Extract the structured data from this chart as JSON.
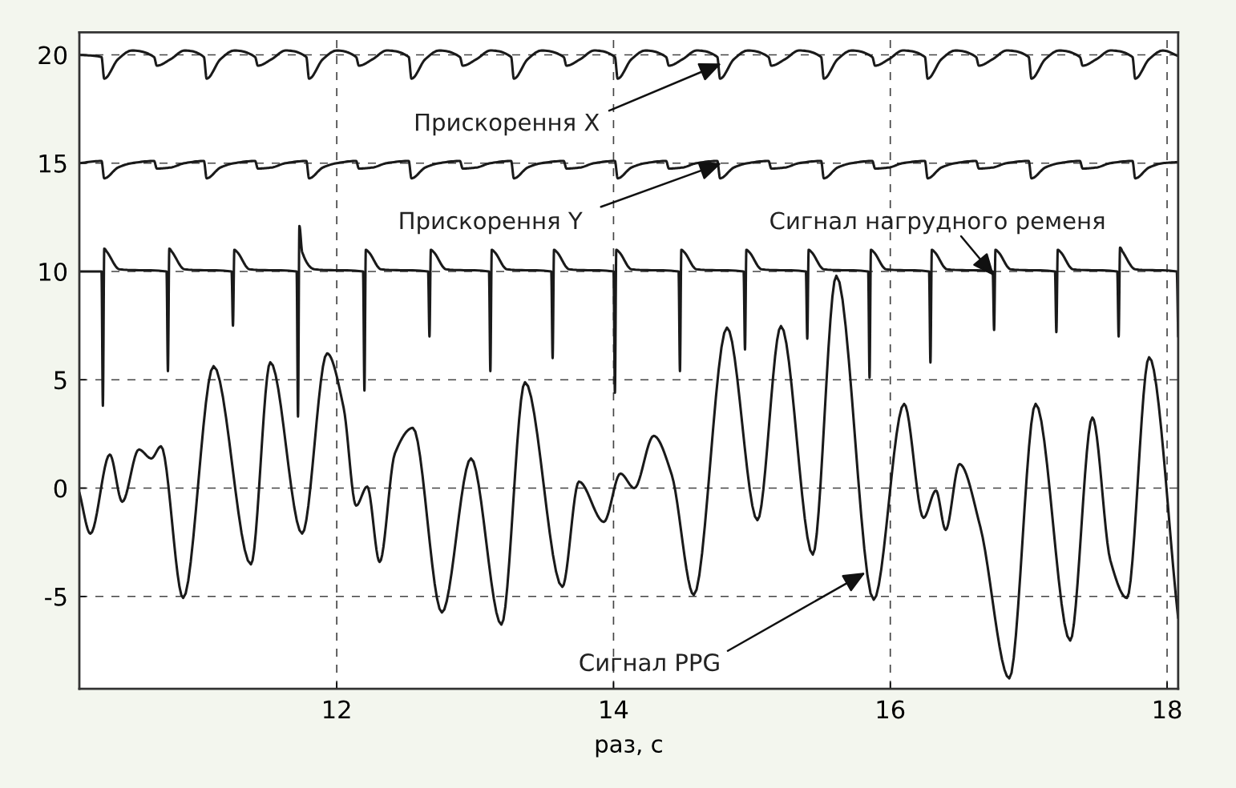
{
  "chart_data": {
    "type": "line",
    "xlabel": "раз, с",
    "xlim": [
      10.14,
      18.08
    ],
    "xticks": [
      12,
      14,
      16,
      18
    ],
    "ylim": [
      -9.26,
      21.04
    ],
    "yticks": [
      20,
      15,
      10,
      5,
      0,
      -5
    ],
    "grid": true,
    "line_style": "solid",
    "marker": "none",
    "series": [
      {
        "color": "#1a1a1a",
        "x": [
          10.14,
          10.3,
          10.32,
          10.42,
          10.52,
          10.68,
          10.7,
          10.8,
          10.9,
          11.04,
          11.06,
          11.16,
          11.26,
          11.41,
          11.43,
          11.53,
          11.63,
          11.78,
          11.8,
          11.9,
          12.0,
          12.14,
          12.16,
          12.26,
          12.36,
          12.52,
          12.54,
          12.64,
          12.74,
          12.89,
          12.91,
          13.01,
          13.11,
          13.26,
          13.28,
          13.38,
          13.48,
          13.64,
          13.66,
          13.76,
          13.86,
          14.01,
          14.03,
          14.13,
          14.23,
          14.38,
          14.4,
          14.5,
          14.6,
          14.75,
          14.77,
          14.87,
          14.97,
          15.12,
          15.14,
          15.24,
          15.34,
          15.5,
          15.52,
          15.62,
          15.72,
          15.87,
          15.89,
          15.99,
          16.09,
          16.25,
          16.27,
          16.37,
          16.47,
          16.62,
          16.64,
          16.74,
          16.84,
          17.0,
          17.02,
          17.12,
          17.22,
          17.37,
          17.39,
          17.49,
          17.59,
          17.75,
          17.77,
          17.87,
          17.97,
          18.08
        ],
        "values": [
          20.0,
          19.9,
          18.9,
          19.8,
          20.2,
          19.9,
          19.5,
          19.8,
          20.2,
          19.9,
          18.9,
          19.8,
          20.2,
          19.9,
          19.5,
          19.8,
          20.2,
          19.9,
          18.9,
          19.8,
          20.2,
          19.9,
          19.5,
          19.8,
          20.2,
          19.9,
          18.9,
          19.8,
          20.2,
          19.9,
          19.5,
          19.8,
          20.2,
          19.9,
          18.9,
          19.8,
          20.2,
          19.9,
          19.5,
          19.8,
          20.2,
          19.9,
          18.9,
          19.8,
          20.2,
          19.9,
          19.5,
          19.8,
          20.2,
          19.9,
          18.9,
          19.8,
          20.2,
          19.9,
          19.5,
          19.8,
          20.2,
          19.9,
          18.9,
          19.8,
          20.2,
          19.9,
          19.5,
          19.8,
          20.2,
          19.9,
          18.9,
          19.8,
          20.2,
          19.9,
          19.5,
          19.8,
          20.2,
          19.9,
          18.9,
          19.8,
          20.2,
          19.9,
          19.5,
          19.8,
          20.2,
          19.9,
          18.9,
          19.8,
          20.2,
          19.95
        ]
      },
      {
        "color": "#1a1a1a",
        "x": [
          10.14,
          10.3,
          10.32,
          10.42,
          10.52,
          10.68,
          10.7,
          10.8,
          10.9,
          11.04,
          11.06,
          11.16,
          11.26,
          11.41,
          11.43,
          11.53,
          11.63,
          11.78,
          11.8,
          11.9,
          12.0,
          12.14,
          12.16,
          12.26,
          12.36,
          12.52,
          12.54,
          12.64,
          12.74,
          12.89,
          12.91,
          13.01,
          13.11,
          13.26,
          13.28,
          13.38,
          13.48,
          13.64,
          13.66,
          13.76,
          13.86,
          14.01,
          14.03,
          14.13,
          14.23,
          14.38,
          14.4,
          14.5,
          14.6,
          14.75,
          14.77,
          14.87,
          14.97,
          15.12,
          15.14,
          15.24,
          15.34,
          15.5,
          15.52,
          15.62,
          15.72,
          15.87,
          15.89,
          15.99,
          16.09,
          16.25,
          16.27,
          16.37,
          16.47,
          16.62,
          16.64,
          16.74,
          16.84,
          17.0,
          17.02,
          17.12,
          17.22,
          17.37,
          17.39,
          17.49,
          17.59,
          17.75,
          17.77,
          17.87,
          17.97,
          18.08
        ],
        "values": [
          15.0,
          15.1,
          14.3,
          14.8,
          15.0,
          15.1,
          14.75,
          14.8,
          15.0,
          15.1,
          14.3,
          14.8,
          15.0,
          15.1,
          14.75,
          14.8,
          15.0,
          15.1,
          14.3,
          14.8,
          15.0,
          15.1,
          14.75,
          14.8,
          15.0,
          15.1,
          14.3,
          14.8,
          15.0,
          15.1,
          14.75,
          14.8,
          15.0,
          15.1,
          14.3,
          14.8,
          15.0,
          15.1,
          14.75,
          14.8,
          15.0,
          15.1,
          14.3,
          14.8,
          15.0,
          15.1,
          14.75,
          14.8,
          15.0,
          15.1,
          14.3,
          14.8,
          15.0,
          15.1,
          14.75,
          14.8,
          15.0,
          15.1,
          14.3,
          14.8,
          15.0,
          15.1,
          14.75,
          14.8,
          15.0,
          15.1,
          14.3,
          14.8,
          15.0,
          15.1,
          14.75,
          14.8,
          15.0,
          15.1,
          14.3,
          14.8,
          15.0,
          15.1,
          14.75,
          14.8,
          15.0,
          15.1,
          14.3,
          14.8,
          15.0,
          15.05
        ]
      },
      {
        "color": "#1a1a1a",
        "x": [
          10.14,
          10.3,
          10.31,
          10.32,
          10.34,
          10.43,
          10.77,
          10.78,
          10.79,
          10.81,
          10.9,
          11.24,
          11.25,
          11.26,
          11.28,
          11.37,
          11.71,
          11.72,
          11.73,
          11.75,
          11.84,
          12.19,
          12.2,
          12.21,
          12.23,
          12.32,
          12.66,
          12.67,
          12.68,
          12.7,
          12.79,
          13.1,
          13.11,
          13.12,
          13.14,
          13.23,
          13.55,
          13.56,
          13.57,
          13.59,
          13.68,
          14.0,
          14.01,
          14.02,
          14.04,
          14.13,
          14.47,
          14.48,
          14.49,
          14.51,
          14.6,
          14.94,
          14.95,
          14.96,
          14.98,
          15.07,
          15.39,
          15.4,
          15.41,
          15.43,
          15.52,
          15.84,
          15.85,
          15.86,
          15.88,
          15.97,
          16.28,
          16.29,
          16.3,
          16.32,
          16.41,
          16.74,
          16.75,
          16.76,
          16.78,
          16.87,
          17.19,
          17.2,
          17.21,
          17.23,
          17.32,
          17.64,
          17.65,
          17.66,
          17.68,
          17.77,
          18.07,
          18.08
        ],
        "values": [
          10.0,
          10.0,
          3.8,
          11.05,
          10.9,
          10.1,
          10.0,
          5.4,
          11.05,
          10.9,
          10.1,
          10.0,
          7.5,
          11.0,
          10.9,
          10.1,
          10.0,
          3.3,
          12.1,
          10.9,
          10.1,
          10.0,
          4.5,
          11.0,
          10.9,
          10.1,
          10.0,
          7.0,
          11.0,
          10.9,
          10.1,
          10.0,
          5.4,
          11.0,
          10.9,
          10.1,
          10.0,
          6.0,
          11.0,
          10.9,
          10.1,
          10.0,
          4.4,
          11.0,
          10.9,
          10.1,
          10.0,
          5.4,
          11.0,
          10.9,
          10.1,
          10.0,
          6.4,
          11.0,
          10.9,
          10.1,
          10.0,
          6.9,
          11.0,
          10.9,
          10.1,
          10.0,
          5.1,
          11.0,
          10.9,
          10.1,
          10.0,
          5.8,
          11.0,
          10.9,
          10.1,
          10.0,
          7.3,
          11.0,
          10.9,
          10.1,
          10.0,
          7.2,
          11.0,
          10.9,
          10.1,
          10.0,
          7.0,
          11.1,
          10.9,
          10.1,
          10.0,
          7.0
        ]
      },
      {
        "color": "#1a1a1a",
        "x": [
          10.14,
          10.22,
          10.36,
          10.45,
          10.57,
          10.66,
          10.73,
          10.89,
          11.11,
          11.38,
          11.52,
          11.75,
          11.93,
          12.05,
          12.14,
          12.22,
          12.31,
          12.42,
          12.55,
          12.76,
          12.97,
          13.19,
          13.36,
          13.63,
          13.75,
          13.93,
          14.05,
          14.15,
          14.29,
          14.42,
          14.58,
          14.82,
          15.04,
          15.21,
          15.44,
          15.61,
          15.88,
          16.1,
          16.24,
          16.33,
          16.4,
          16.5,
          16.65,
          16.86,
          17.05,
          17.3,
          17.46,
          17.59,
          17.71,
          17.87,
          18.08
        ],
        "values": [
          -0.2,
          -2.1,
          1.55,
          -0.63,
          1.78,
          1.37,
          1.93,
          -5.07,
          5.63,
          -3.52,
          5.81,
          -2.1,
          6.22,
          3.7,
          -0.81,
          0.07,
          -3.41,
          1.6,
          2.78,
          -5.74,
          1.37,
          -6.3,
          4.89,
          -4.56,
          0.3,
          -1.56,
          0.67,
          0.0,
          2.41,
          0.63,
          -4.93,
          7.41,
          -1.48,
          7.48,
          -3.07,
          9.8,
          -5.15,
          3.89,
          -1.37,
          -0.11,
          -1.93,
          1.11,
          -1.78,
          -8.78,
          3.89,
          -7.04,
          3.26,
          -3.33,
          -5.07,
          6.04,
          -6.0
        ]
      }
    ],
    "annotations": [
      {
        "text": "Прискорення X",
        "x": 14.78,
        "y": 19.6
      },
      {
        "text": "Прискорення Y",
        "x": 14.78,
        "y": 15.0
      },
      {
        "text": "Сигнал нагрудного ременя",
        "x": 16.75,
        "y": 9.8
      },
      {
        "text": "Сигнал PPG",
        "x": 15.82,
        "y": -3.9
      }
    ]
  }
}
